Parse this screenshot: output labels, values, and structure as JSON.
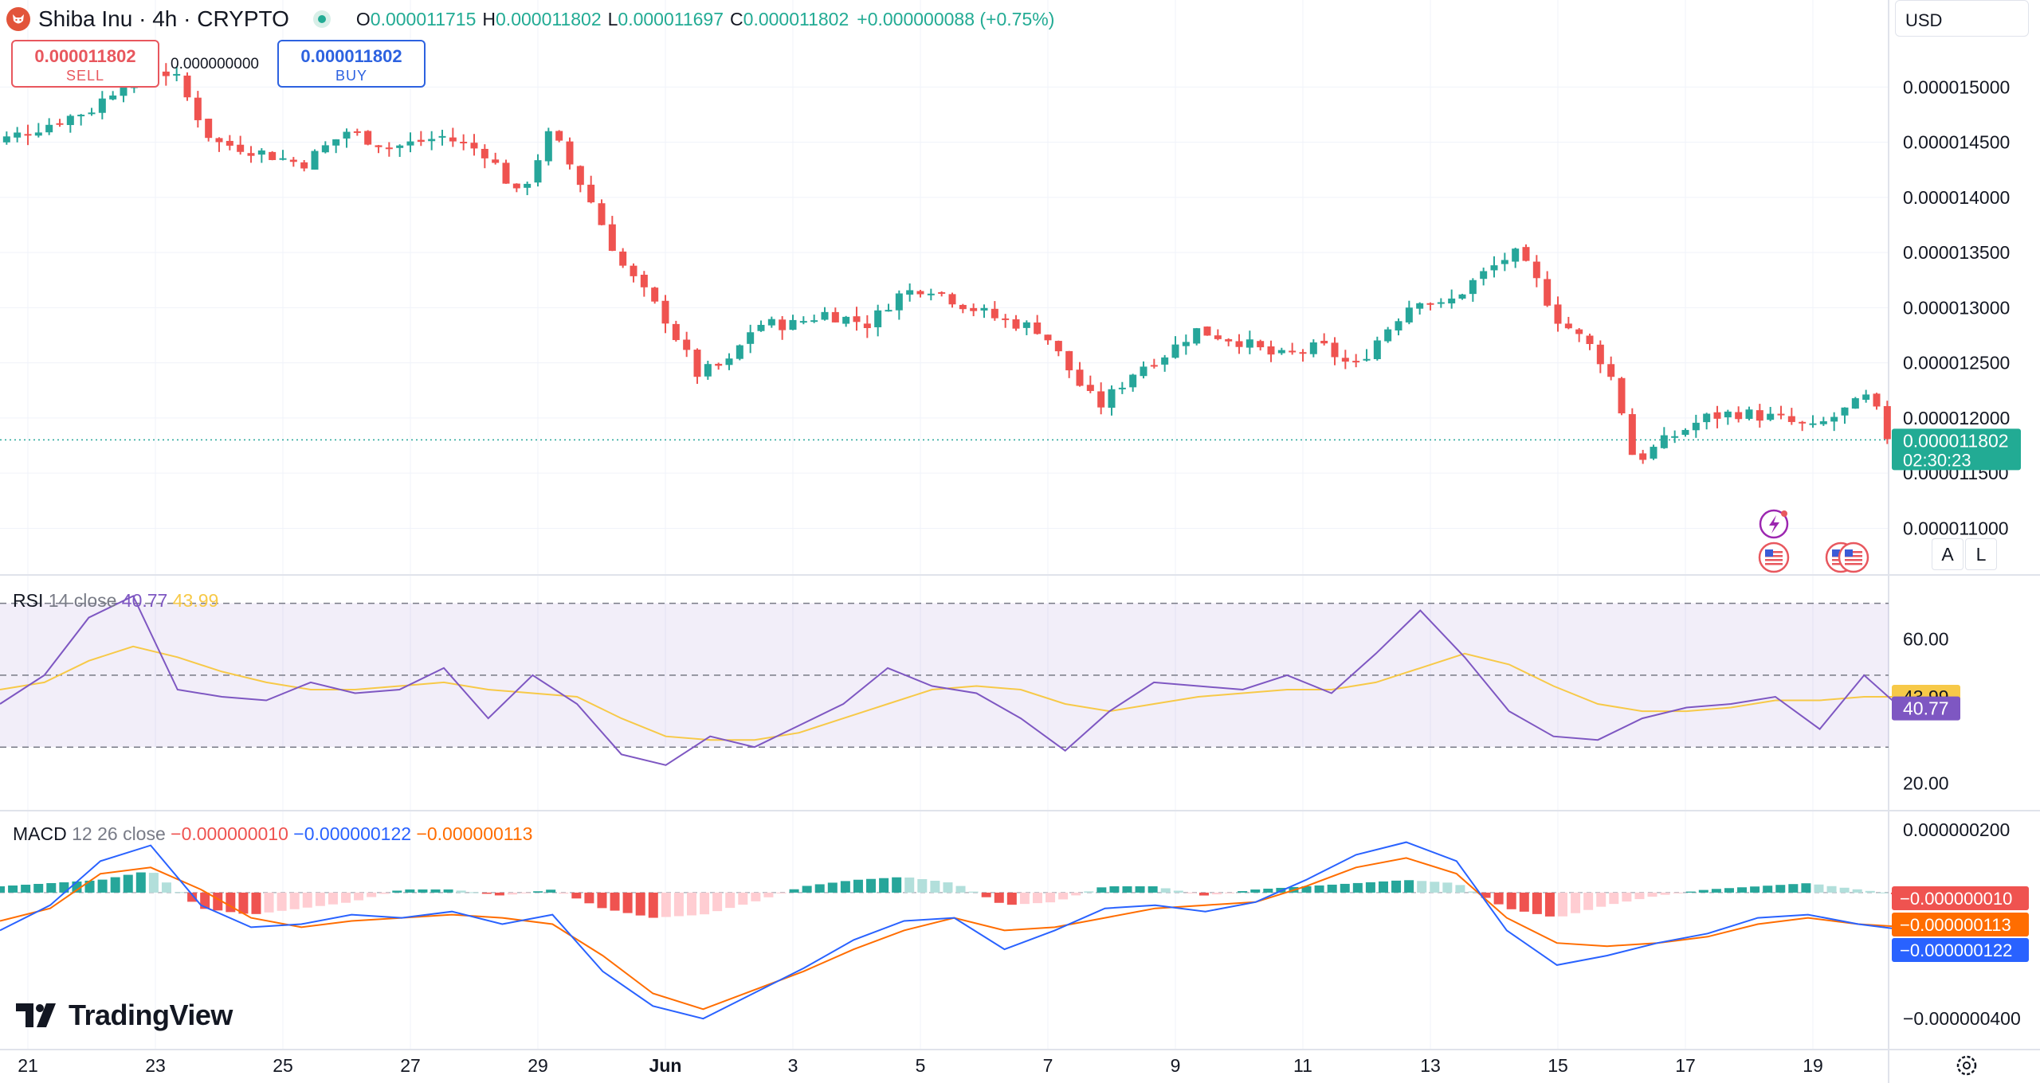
{
  "header": {
    "symbol": "Shiba Inu · 4h · CRYPTO",
    "ohlc": {
      "o_label": "O",
      "o": "0.000011715",
      "h_label": "H",
      "h": "0.000011802",
      "l_label": "L",
      "l": "0.000011697",
      "c_label": "C",
      "c": "0.000011802",
      "change": "+0.000000088 (+0.75%)"
    }
  },
  "trade": {
    "sell_price": "0.000011802",
    "sell_label": "SELL",
    "buy_price": "0.000011802",
    "buy_label": "BUY",
    "spread": "0.000000000"
  },
  "currency": "USD",
  "price_badge": {
    "price": "0.000011802",
    "countdown": "02:30:23"
  },
  "scale_buttons": {
    "auto": "A",
    "log": "L"
  },
  "rsi_legend": {
    "title": "RSI",
    "params": "14 close",
    "value": "40.77",
    "ma_value": "43.99"
  },
  "macd_legend": {
    "title": "MACD",
    "params": "12 26 close",
    "hist": "−0.000000010",
    "macd": "−0.000000122",
    "signal": "−0.000000113"
  },
  "brand": "TradingView",
  "colors": {
    "up": "#26a69a",
    "down": "#ef5350",
    "rsi": "#7e57c2",
    "rsi_ma": "#f7c948",
    "macd": "#2962ff",
    "signal": "#ff6d00"
  },
  "chart_data": [
    {
      "type": "candlestick",
      "title": "Shiba Inu · 4h · CRYPTO",
      "x_ticks": [
        "21",
        "23",
        "25",
        "27",
        "29",
        "Jun",
        "3",
        "5",
        "7",
        "9",
        "11",
        "13",
        "15",
        "17",
        "19"
      ],
      "y_ticks": [
        "0.000015000",
        "0.000014500",
        "0.000014000",
        "0.000013500",
        "0.000013000",
        "0.000012500",
        "0.000012000",
        "0.000011500",
        "0.000011000"
      ],
      "ylim": [
        1.07e-05,
        1.55e-05
      ],
      "last_price": 1.1802e-05,
      "close_path": [
        {
          "day": 20.0,
          "close": 1.44e-05
        },
        {
          "day": 21.0,
          "close": 1.46e-05
        },
        {
          "day": 22.0,
          "close": 1.48e-05
        },
        {
          "day": 22.8,
          "close": 1.52e-05
        },
        {
          "day": 23.3,
          "close": 1.51e-05
        },
        {
          "day": 23.9,
          "close": 1.45e-05
        },
        {
          "day": 24.4,
          "close": 1.445e-05
        },
        {
          "day": 25.3,
          "close": 1.43e-05
        },
        {
          "day": 26.0,
          "close": 1.46e-05
        },
        {
          "day": 26.7,
          "close": 1.445e-05
        },
        {
          "day": 27.5,
          "close": 1.455e-05
        },
        {
          "day": 28.2,
          "close": 1.44e-05
        },
        {
          "day": 28.7,
          "close": 1.4e-05
        },
        {
          "day": 29.2,
          "close": 1.46e-05
        },
        {
          "day": 29.8,
          "close": 1.4e-05
        },
        {
          "day": 30.3,
          "close": 1.34e-05
        },
        {
          "day": 31.0,
          "close": 1.29e-05
        },
        {
          "day": 31.5,
          "close": 1.24e-05
        },
        {
          "day": 32.0,
          "close": 1.25e-05
        },
        {
          "day": 32.4,
          "close": 1.285e-05
        },
        {
          "day": 33.0,
          "close": 1.285e-05
        },
        {
          "day": 33.5,
          "close": 1.295e-05
        },
        {
          "day": 34.2,
          "close": 1.285e-05
        },
        {
          "day": 34.6,
          "close": 1.31e-05
        },
        {
          "day": 35.1,
          "close": 1.32e-05
        },
        {
          "day": 35.6,
          "close": 1.305e-05
        },
        {
          "day": 36.2,
          "close": 1.29e-05
        },
        {
          "day": 36.9,
          "close": 1.28e-05
        },
        {
          "day": 37.5,
          "close": 1.23e-05
        },
        {
          "day": 37.8,
          "close": 1.21e-05
        },
        {
          "day": 38.4,
          "close": 1.245e-05
        },
        {
          "day": 38.9,
          "close": 1.26e-05
        },
        {
          "day": 39.3,
          "close": 1.28e-05
        },
        {
          "day": 40.0,
          "close": 1.27e-05
        },
        {
          "day": 40.6,
          "close": 1.255e-05
        },
        {
          "day": 41.3,
          "close": 1.265e-05
        },
        {
          "day": 41.8,
          "close": 1.245e-05
        },
        {
          "day": 42.3,
          "close": 1.28e-05
        },
        {
          "day": 42.8,
          "close": 1.31e-05
        },
        {
          "day": 43.2,
          "close": 1.3e-05
        },
        {
          "day": 43.7,
          "close": 1.325e-05
        },
        {
          "day": 44.3,
          "close": 1.35e-05
        },
        {
          "day": 44.6,
          "close": 1.33e-05
        },
        {
          "day": 45.0,
          "close": 1.29e-05
        },
        {
          "day": 45.6,
          "close": 1.26e-05
        },
        {
          "day": 45.9,
          "close": 1.23e-05
        },
        {
          "day": 46.2,
          "close": 1.16e-05
        },
        {
          "day": 46.7,
          "close": 1.18e-05
        },
        {
          "day": 47.3,
          "close": 1.2e-05
        },
        {
          "day": 47.8,
          "close": 1.205e-05
        },
        {
          "day": 48.4,
          "close": 1.2e-05
        },
        {
          "day": 49.0,
          "close": 1.19e-05
        },
        {
          "day": 49.6,
          "close": 1.21e-05
        },
        {
          "day": 49.9,
          "close": 1.22e-05
        },
        {
          "day": 50.1,
          "close": 1.19e-05
        },
        {
          "day": 50.3,
          "close": 1.17e-05
        },
        {
          "day": 50.5,
          "close": 1.18e-05
        }
      ]
    },
    {
      "type": "line",
      "title": "RSI",
      "y_ticks": [
        "60.00",
        "20.00"
      ],
      "ylim": [
        13,
        75
      ],
      "bands": [
        70,
        50,
        30
      ],
      "series": [
        {
          "name": "RSI",
          "values": [
            42,
            50,
            66,
            72,
            46,
            44,
            43,
            48,
            45,
            46,
            52,
            38,
            50,
            42,
            28,
            25,
            33,
            30,
            36,
            42,
            52,
            47,
            45,
            38,
            29,
            40,
            48,
            47,
            46,
            50,
            45,
            56,
            68,
            55,
            40,
            33,
            32,
            38,
            41,
            42,
            44,
            35,
            50,
            39
          ]
        },
        {
          "name": "MA",
          "values": [
            46,
            48,
            54,
            58,
            55,
            51,
            48,
            46,
            46,
            47,
            48,
            46,
            45,
            44,
            38,
            33,
            32,
            32,
            34,
            38,
            42,
            46,
            47,
            46,
            42,
            40,
            42,
            44,
            45,
            46,
            46,
            48,
            52,
            56,
            53,
            47,
            42,
            40,
            40,
            41,
            43,
            43,
            44,
            44
          ]
        }
      ],
      "last": {
        "rsi": 40.77,
        "ma": 43.99
      }
    },
    {
      "type": "line",
      "title": "MACD",
      "y_ticks": [
        "0.000000200",
        "−0.000000400"
      ],
      "ylim": [
        -4.4e-07,
        2.5e-07
      ],
      "series": [
        {
          "name": "MACD",
          "values": [
            -1.2e-07,
            -4e-08,
            1e-07,
            1.5e-07,
            -4e-08,
            -1.1e-07,
            -1e-07,
            -7e-08,
            -8e-08,
            -6e-08,
            -1e-07,
            -7e-08,
            -2.5e-07,
            -3.6e-07,
            -4e-07,
            -3.2e-07,
            -2.4e-07,
            -1.5e-07,
            -9e-08,
            -8e-08,
            -1.8e-07,
            -1.2e-07,
            -5e-08,
            -4e-08,
            -6e-08,
            -3e-08,
            4e-08,
            1.2e-07,
            1.6e-07,
            1e-07,
            -1.2e-07,
            -2.3e-07,
            -2e-07,
            -1.6e-07,
            -1.3e-07,
            -8e-08,
            -7e-08,
            -1e-07,
            -1.2e-07
          ]
        },
        {
          "name": "Signal",
          "values": [
            -9e-08,
            -5e-08,
            6e-08,
            8e-08,
            1e-08,
            -8e-08,
            -1.1e-07,
            -9e-08,
            -8e-08,
            -7e-08,
            -8e-08,
            -1e-07,
            -2e-07,
            -3.2e-07,
            -3.7e-07,
            -3.1e-07,
            -2.5e-07,
            -1.8e-07,
            -1.2e-07,
            -8e-08,
            -1.2e-07,
            -1.1e-07,
            -8e-08,
            -5e-08,
            -4e-08,
            -3e-08,
            2e-08,
            8e-08,
            1.1e-07,
            6e-08,
            -8e-08,
            -1.6e-07,
            -1.7e-07,
            -1.6e-07,
            -1.4e-07,
            -1e-07,
            -8e-08,
            -1e-07,
            -1.1e-07
          ]
        }
      ],
      "histogram": [
        2e-08,
        3e-08,
        4e-08,
        7e-08,
        -5e-08,
        -7e-08,
        -5e-08,
        -3e-08,
        1e-08,
        1e-08,
        -1e-08,
        1e-08,
        -5e-08,
        -8e-08,
        -7e-08,
        -3e-08,
        2e-08,
        4e-08,
        5e-08,
        3e-08,
        -4e-08,
        -3e-08,
        2e-08,
        2e-08,
        -1e-08,
        1e-08,
        2e-08,
        3e-08,
        4e-08,
        3e-08,
        -5e-08,
        -8e-08,
        -4e-08,
        -1e-08,
        1e-08,
        2e-08,
        3e-08,
        1e-08,
        -1e-08
      ],
      "last": {
        "histogram": -1e-08,
        "macd": -1.22e-07,
        "signal": -1.13e-07
      }
    }
  ]
}
